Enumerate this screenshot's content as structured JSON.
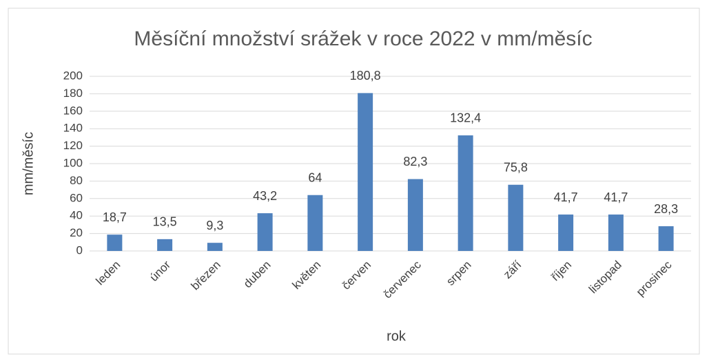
{
  "chart_data": {
    "type": "bar",
    "title": "Měsíční množství srážek v roce  2022 v mm/měsíc",
    "x_label": "rok",
    "y_label": "mm/měsíc",
    "categories": [
      "leden",
      "únor",
      "březen",
      "duben",
      "květen",
      "červen",
      "červenec",
      "srpen",
      "září",
      "říjen",
      "listopad",
      "prosinec"
    ],
    "values": [
      18.7,
      13.5,
      9.3,
      43.2,
      64,
      180.8,
      82.3,
      132.4,
      75.8,
      41.7,
      41.7,
      28.3
    ],
    "value_labels": [
      "18,7",
      "13,5",
      "9,3",
      "43,2",
      "64",
      "180,8",
      "82,3",
      "132,4",
      "75,8",
      "41,7",
      "41,7",
      "28,3"
    ],
    "color": "#4f81bd",
    "ylim": [
      0,
      200
    ],
    "yticks": [
      0,
      20,
      40,
      60,
      80,
      100,
      120,
      140,
      160,
      180,
      200
    ],
    "grid": true
  }
}
